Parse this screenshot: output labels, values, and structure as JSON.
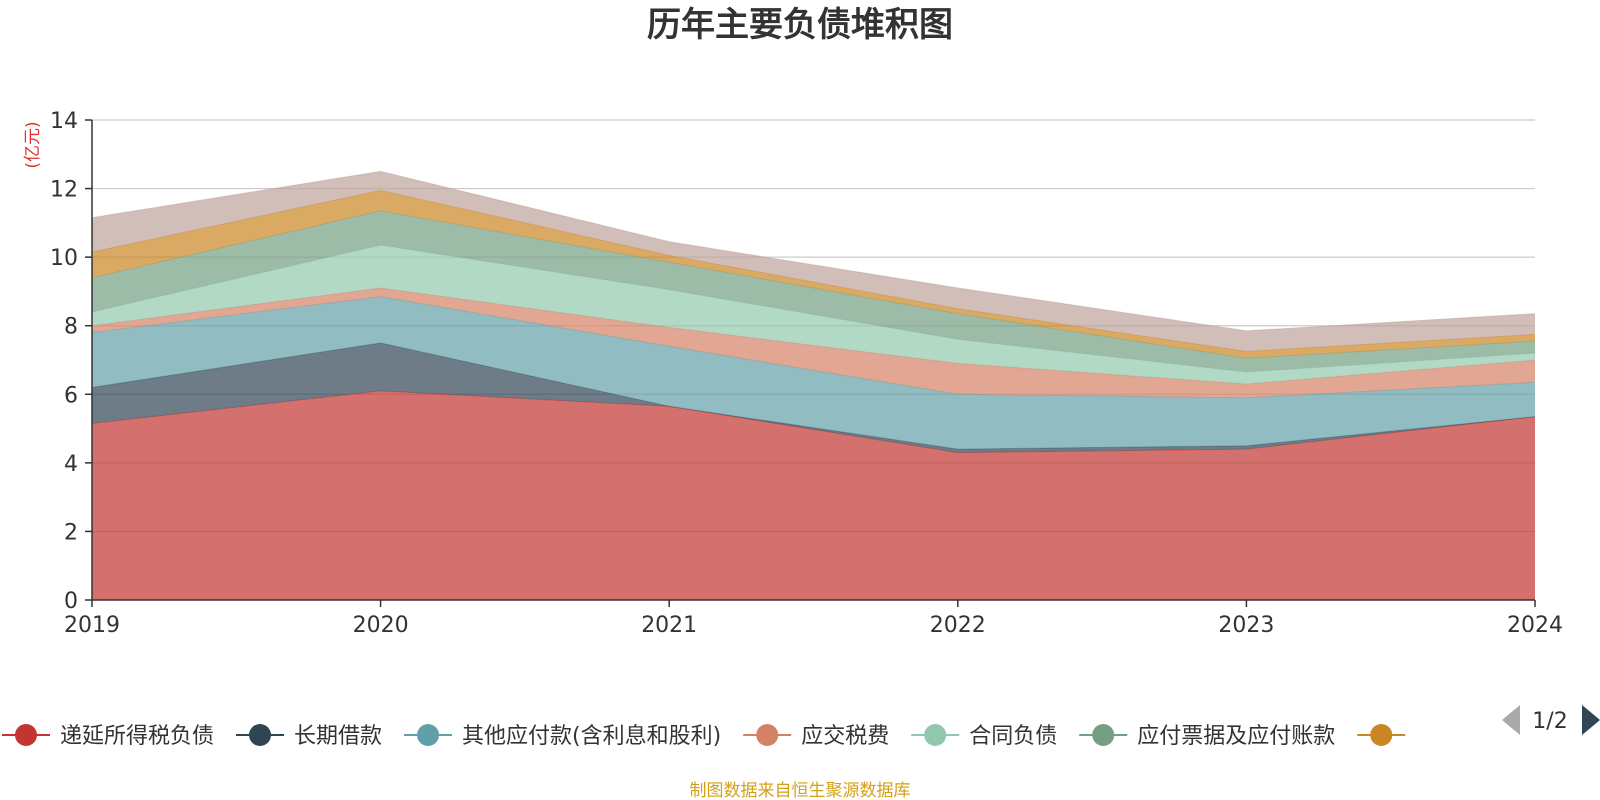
{
  "chart_data": {
    "type": "area",
    "title": "历年主要负债堆积图",
    "unit_label": "(亿元)",
    "categories": [
      "2019",
      "2020",
      "2021",
      "2022",
      "2023",
      "2024"
    ],
    "ylim": [
      0,
      14
    ],
    "yticks": [
      0,
      2,
      4,
      6,
      8,
      10,
      12,
      14
    ],
    "grid": true,
    "stacked": true,
    "series": [
      {
        "name": "递延所得税负债",
        "color": "#c23531",
        "values": [
          5.15,
          6.1,
          5.65,
          4.3,
          4.4,
          5.35
        ]
      },
      {
        "name": "长期借款",
        "color": "#2f4554",
        "values": [
          1.05,
          1.4,
          0.0,
          0.1,
          0.1,
          0.0
        ]
      },
      {
        "name": "其他应付款(含利息和股利)",
        "color": "#61a0a8",
        "values": [
          1.6,
          1.35,
          1.75,
          1.6,
          1.4,
          1.0
        ]
      },
      {
        "name": "应交税费",
        "color": "#d48265",
        "values": [
          0.2,
          0.25,
          0.55,
          0.9,
          0.4,
          0.65
        ]
      },
      {
        "name": "合同负债",
        "color": "#91c7ae",
        "values": [
          0.4,
          1.25,
          1.1,
          0.7,
          0.35,
          0.2
        ]
      },
      {
        "name": "应付票据及应付账款",
        "color": "#749f83",
        "values": [
          1.0,
          1.0,
          0.8,
          0.75,
          0.4,
          0.35
        ]
      },
      {
        "name": "",
        "color": "#ca8622",
        "values": [
          0.75,
          0.6,
          0.2,
          0.15,
          0.2,
          0.2
        ]
      },
      {
        "name": "",
        "color": "#bda29a",
        "values": [
          1.0,
          0.55,
          0.4,
          0.6,
          0.6,
          0.6
        ]
      }
    ]
  },
  "legend": {
    "visible_items": [
      "递延所得税负债",
      "长期借款",
      "其他应付款(含利息和股利)",
      "应交税费",
      "合同负债",
      "应付票据及应付账款",
      ""
    ],
    "page_indicator": "1/2"
  },
  "source_text": "制图数据来自恒生聚源数据库"
}
